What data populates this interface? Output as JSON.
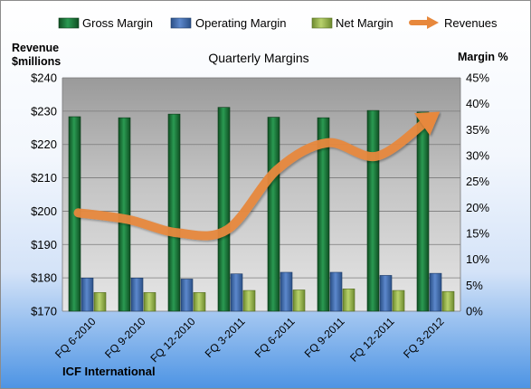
{
  "chart_data": {
    "type": "bar",
    "title": "Quarterly Margins",
    "left_axis_label_line1": "Revenue",
    "left_axis_label_line2": "$millions",
    "right_axis_label": "Margin %",
    "company": "ICF International",
    "categories": [
      "FQ 6-2010",
      "FQ 9-2010",
      "FQ 12-2010",
      "FQ 3-2011",
      "FQ 6-2011",
      "FQ 9-2011",
      "FQ 12-2011",
      "FQ 3-2012"
    ],
    "left_ylim": [
      170,
      240
    ],
    "left_ticks": [
      170,
      180,
      190,
      200,
      210,
      220,
      230,
      240
    ],
    "left_tick_labels": [
      "$170",
      "$180",
      "$190",
      "$200",
      "$210",
      "$220",
      "$230",
      "$240"
    ],
    "right_ylim": [
      0,
      45
    ],
    "right_ticks": [
      0,
      5,
      10,
      15,
      20,
      25,
      30,
      35,
      40,
      45
    ],
    "right_tick_labels": [
      "0%",
      "5%",
      "10%",
      "15%",
      "20%",
      "25%",
      "30%",
      "35%",
      "40%",
      "45%"
    ],
    "series": [
      {
        "name": "Gross Margin",
        "kind": "bar",
        "axis": "right",
        "color": "#1f7a3e",
        "values": [
          37.5,
          37.3,
          38.0,
          39.3,
          37.4,
          37.3,
          38.7,
          38.4
        ]
      },
      {
        "name": "Operating Margin",
        "kind": "bar",
        "axis": "right",
        "color": "#3a66a8",
        "values": [
          6.4,
          6.4,
          6.2,
          7.2,
          7.5,
          7.5,
          6.9,
          7.3
        ]
      },
      {
        "name": "Net Margin",
        "kind": "bar",
        "axis": "right",
        "color": "#8fb04a",
        "values": [
          3.6,
          3.6,
          3.6,
          4.0,
          4.1,
          4.3,
          4.0,
          3.8
        ]
      },
      {
        "name": "Revenues",
        "kind": "line",
        "axis": "left",
        "color": "#e7883c",
        "values": [
          199.5,
          197.5,
          193.5,
          194.5,
          212.5,
          220.5,
          216.5,
          227.0
        ]
      }
    ],
    "grid": true,
    "legend_position": "top"
  }
}
